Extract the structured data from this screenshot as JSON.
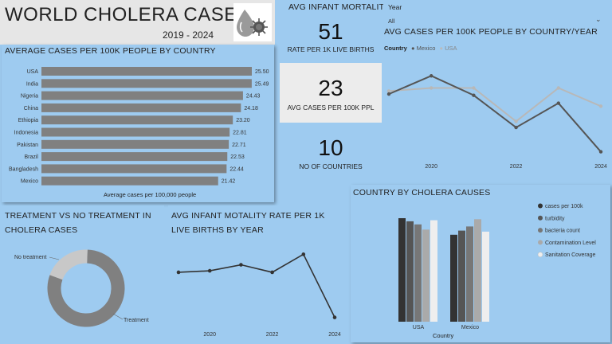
{
  "header": {
    "title": "WORLD CHOLERA CASES",
    "years": "2019 - 2024",
    "logo_icon": "cholera-virus-drop-icon"
  },
  "kpis": {
    "section_title": "AVG INFANT MORTALITY",
    "infant_mortality": {
      "value": "51",
      "label": "RATE PER 1K LIVE BIRTHS"
    },
    "avg_cases": {
      "value": "23",
      "label": "AVG CASES PER 100K PPL"
    },
    "countries": {
      "value": "10",
      "label": "NO OF COUNTRIES"
    }
  },
  "slicer": {
    "label": "Year",
    "value": "All"
  },
  "bar_panel": {
    "title": "AVERAGE CASES PER 100K PEOPLE BY COUNTRY",
    "xlabel": "Average cases per 100,000 people",
    "bar_color": "#808080"
  },
  "line_panel": {
    "title": "AVG CASES PER 100K PEOPLE BY COUNTRY/YEAR",
    "legend_label": "Country",
    "series_colors": [
      "#555555",
      "#b8b8b8"
    ]
  },
  "donut_panel": {
    "title_line1": "TREATMENT VS NO TREATMENT IN",
    "title_line2": "CHOLERA CASES"
  },
  "infant_panel": {
    "title_line1": "AVG INFANT MOTALITY RATE PER 1K",
    "title_line2": "LIVE BIRTHS BY YEAR"
  },
  "causes_panel": {
    "title": "COUNTRY BY CHOLERA CAUSES",
    "xlabel": "Country"
  },
  "chart_data": [
    {
      "id": "bar",
      "type": "bar",
      "orientation": "horizontal",
      "categories": [
        "USA",
        "India",
        "Nigeria",
        "China",
        "Ethiopia",
        "Indonesia",
        "Pakistan",
        "Brazil",
        "Bangladesh",
        "Mexico"
      ],
      "values": [
        25.5,
        25.49,
        24.43,
        24.18,
        23.2,
        22.81,
        22.71,
        22.53,
        22.44,
        21.42
      ],
      "labels": [
        "25.50",
        "25.49",
        "24.43",
        "24.18",
        "23.20",
        "22.81",
        "22.71",
        "22.53",
        "22.44",
        "21.42"
      ],
      "xlabel": "Average cases per 100,000 people",
      "xlim": [
        0,
        25.5
      ]
    },
    {
      "id": "country_year",
      "type": "line",
      "x": [
        2019,
        2020,
        2021,
        2022,
        2023,
        2024
      ],
      "x_ticks": [
        "2020",
        "2022",
        "2024"
      ],
      "series": [
        {
          "name": "Mexico",
          "values": [
            23.0,
            26.0,
            22.8,
            17.5,
            21.5,
            13.5
          ]
        },
        {
          "name": "USA",
          "values": [
            23.5,
            24.0,
            24.0,
            18.5,
            24.0,
            21.0
          ]
        }
      ],
      "ylim": [
        12,
        28
      ]
    },
    {
      "id": "treatment",
      "type": "pie",
      "style": "donut",
      "categories": [
        "Treatment",
        "No treatment"
      ],
      "values": [
        80,
        20
      ],
      "colors": [
        "#808080",
        "#c8c8c8"
      ]
    },
    {
      "id": "infant_year",
      "type": "line",
      "x": [
        2019,
        2020,
        2021,
        2022,
        2023,
        2024
      ],
      "x_ticks": [
        "2020",
        "2022",
        "2024"
      ],
      "series": [
        {
          "name": "",
          "values": [
            50,
            51,
            55,
            50,
            62,
            20
          ]
        }
      ],
      "ylim": [
        15,
        68
      ]
    },
    {
      "id": "causes",
      "type": "bar",
      "categories": [
        "USA",
        "Mexico"
      ],
      "series": [
        {
          "name": "cases per 100k",
          "values": [
            100,
            84
          ]
        },
        {
          "name": "turbidity",
          "values": [
            97,
            88
          ]
        },
        {
          "name": "bacteria count",
          "values": [
            94,
            92
          ]
        },
        {
          "name": "Contamination Level",
          "values": [
            89,
            99
          ]
        },
        {
          "name": "Sanitation Coverage",
          "values": [
            98,
            87
          ]
        }
      ],
      "colors": [
        "#333333",
        "#555555",
        "#777777",
        "#aaaaaa",
        "#eeeeee"
      ],
      "xlabel": "Country",
      "ylim": [
        0,
        100
      ]
    }
  ]
}
